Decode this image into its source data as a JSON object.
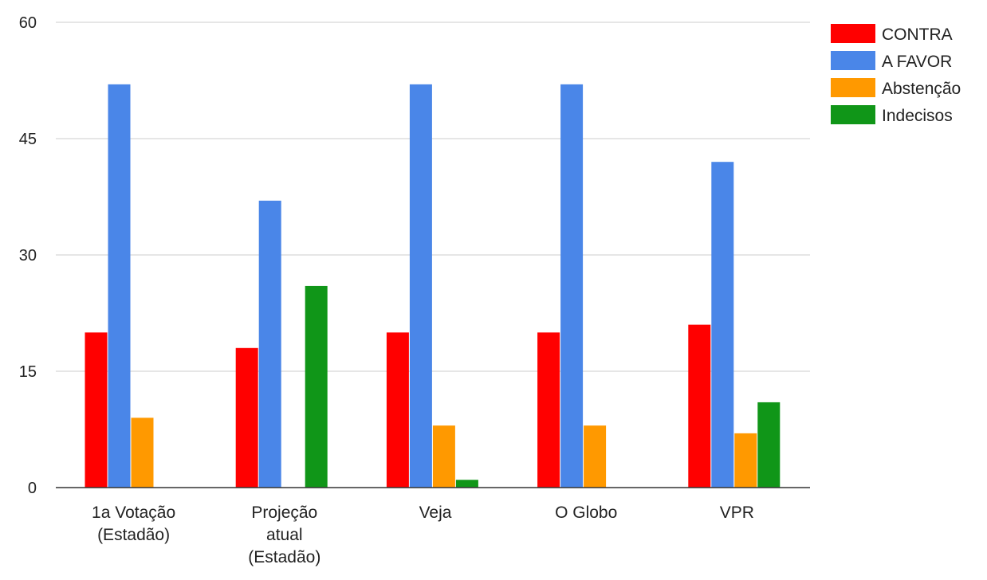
{
  "chart_data": {
    "type": "bar",
    "categories": [
      [
        "1a Votação",
        "(Estadão)"
      ],
      [
        "Projeção",
        "atual",
        "(Estadão)"
      ],
      [
        "Veja"
      ],
      [
        "O Globo"
      ],
      [
        "VPR"
      ]
    ],
    "series": [
      {
        "name": "CONTRA",
        "color": "#ff0000",
        "values": [
          20,
          18,
          20,
          20,
          21
        ]
      },
      {
        "name": "A FAVOR",
        "color": "#4a86e8",
        "values": [
          52,
          37,
          52,
          52,
          42
        ]
      },
      {
        "name": "Abstenção",
        "color": "#ff9900",
        "values": [
          9,
          0,
          8,
          8,
          7
        ]
      },
      {
        "name": "Indecisos",
        "color": "#109618",
        "values": [
          0,
          26,
          1,
          0,
          11
        ]
      }
    ],
    "ylim": [
      0,
      60
    ],
    "yticks": [
      0,
      15,
      30,
      45,
      60
    ],
    "grid": true,
    "legend_position": "top-right"
  }
}
